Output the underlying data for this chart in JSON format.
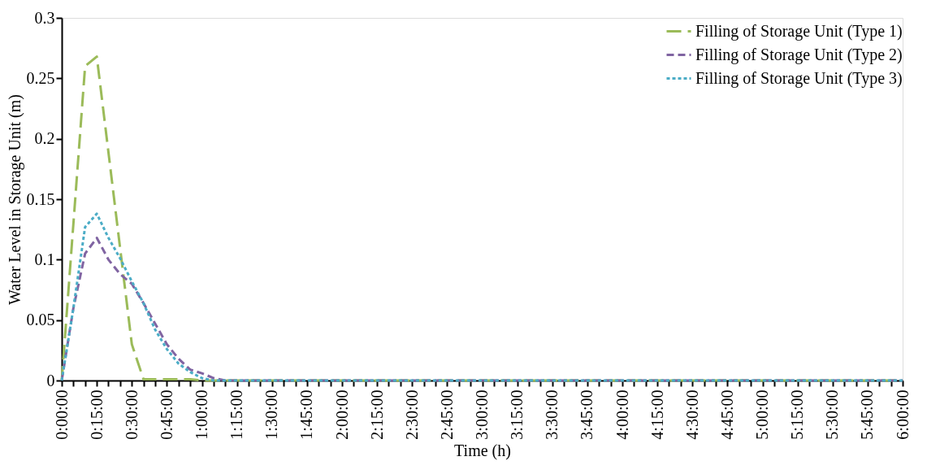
{
  "chart_data": {
    "type": "line",
    "xlabel": "Time (h)",
    "ylabel": "Water Level in Storage Unit (m)",
    "xlim": [
      0,
      6
    ],
    "ylim": [
      0,
      0.3
    ],
    "yticks": [
      0,
      0.05,
      0.1,
      0.15,
      0.2,
      0.25,
      0.3
    ],
    "xticks": [
      {
        "value": 0,
        "label": "0:00:00"
      },
      {
        "value": 0.0833,
        "label": null
      },
      {
        "value": 0.1667,
        "label": null
      },
      {
        "value": 0.25,
        "label": "0:15:00"
      },
      {
        "value": 0.3333,
        "label": null
      },
      {
        "value": 0.4167,
        "label": null
      },
      {
        "value": 0.5,
        "label": "0:30:00"
      },
      {
        "value": 0.5833,
        "label": null
      },
      {
        "value": 0.6667,
        "label": null
      },
      {
        "value": 0.75,
        "label": "0:45:00"
      },
      {
        "value": 0.8333,
        "label": null
      },
      {
        "value": 0.9167,
        "label": null
      },
      {
        "value": 1,
        "label": "1:00:00"
      },
      {
        "value": 1.0833,
        "label": null
      },
      {
        "value": 1.1667,
        "label": null
      },
      {
        "value": 1.25,
        "label": "1:15:00"
      },
      {
        "value": 1.3333,
        "label": null
      },
      {
        "value": 1.4167,
        "label": null
      },
      {
        "value": 1.5,
        "label": "1:30:00"
      },
      {
        "value": 1.5833,
        "label": null
      },
      {
        "value": 1.6667,
        "label": null
      },
      {
        "value": 1.75,
        "label": "1:45:00"
      },
      {
        "value": 1.8333,
        "label": null
      },
      {
        "value": 1.9167,
        "label": null
      },
      {
        "value": 2,
        "label": "2:00:00"
      },
      {
        "value": 2.0833,
        "label": null
      },
      {
        "value": 2.1667,
        "label": null
      },
      {
        "value": 2.25,
        "label": "2:15:00"
      },
      {
        "value": 2.3333,
        "label": null
      },
      {
        "value": 2.4167,
        "label": null
      },
      {
        "value": 2.5,
        "label": "2:30:00"
      },
      {
        "value": 2.5833,
        "label": null
      },
      {
        "value": 2.6667,
        "label": null
      },
      {
        "value": 2.75,
        "label": "2:45:00"
      },
      {
        "value": 2.8333,
        "label": null
      },
      {
        "value": 2.9167,
        "label": null
      },
      {
        "value": 3,
        "label": "3:00:00"
      },
      {
        "value": 3.0833,
        "label": null
      },
      {
        "value": 3.1667,
        "label": null
      },
      {
        "value": 3.25,
        "label": "3:15:00"
      },
      {
        "value": 3.3333,
        "label": null
      },
      {
        "value": 3.4167,
        "label": null
      },
      {
        "value": 3.5,
        "label": "3:30:00"
      },
      {
        "value": 3.5833,
        "label": null
      },
      {
        "value": 3.6667,
        "label": null
      },
      {
        "value": 3.75,
        "label": "3:45:00"
      },
      {
        "value": 3.8333,
        "label": null
      },
      {
        "value": 3.9167,
        "label": null
      },
      {
        "value": 4,
        "label": "4:00:00"
      },
      {
        "value": 4.0833,
        "label": null
      },
      {
        "value": 4.1667,
        "label": null
      },
      {
        "value": 4.25,
        "label": "4:15:00"
      },
      {
        "value": 4.3333,
        "label": null
      },
      {
        "value": 4.4167,
        "label": null
      },
      {
        "value": 4.5,
        "label": "4:30:00"
      },
      {
        "value": 4.5833,
        "label": null
      },
      {
        "value": 4.6667,
        "label": null
      },
      {
        "value": 4.75,
        "label": "4:45:00"
      },
      {
        "value": 4.8333,
        "label": null
      },
      {
        "value": 4.9167,
        "label": null
      },
      {
        "value": 5,
        "label": "5:00:00"
      },
      {
        "value": 5.0833,
        "label": null
      },
      {
        "value": 5.1667,
        "label": null
      },
      {
        "value": 5.25,
        "label": "5:15:00"
      },
      {
        "value": 5.3333,
        "label": null
      },
      {
        "value": 5.4167,
        "label": null
      },
      {
        "value": 5.5,
        "label": "5:30:00"
      },
      {
        "value": 5.5833,
        "label": null
      },
      {
        "value": 5.6667,
        "label": null
      },
      {
        "value": 5.75,
        "label": "5:45:00"
      },
      {
        "value": 5.8333,
        "label": null
      },
      {
        "value": 5.9167,
        "label": null
      },
      {
        "value": 6,
        "label": "6:00:00"
      }
    ],
    "grid": false,
    "legend": "top right",
    "marker": "none",
    "series": [
      {
        "name": "Filling of Storage Unit (Type 1)",
        "color": "#9bbb59",
        "line_style": "dashed",
        "x": [
          0,
          0.1667,
          0.25,
          0.5,
          0.5833,
          0.9167,
          1,
          6
        ],
        "values": [
          0,
          0.26,
          0.268,
          0.03,
          0.001,
          0.001,
          0,
          0
        ]
      },
      {
        "name": "Filling of Storage Unit (Type 2)",
        "color": "#8064a2",
        "line_style": "dashed",
        "x": [
          0,
          0.0833,
          0.1667,
          0.25,
          0.3333,
          0.4167,
          0.5,
          0.5833,
          0.6667,
          0.75,
          0.8333,
          0.9167,
          1,
          1.0833,
          1.1667,
          6
        ],
        "values": [
          0,
          0.06,
          0.105,
          0.118,
          0.1,
          0.088,
          0.08,
          0.064,
          0.047,
          0.03,
          0.018,
          0.009,
          0.006,
          0.002,
          0,
          0
        ]
      },
      {
        "name": "Filling of Storage Unit (Type 3)",
        "color": "#4bacc6",
        "line_style": "dotted",
        "x": [
          0,
          0.0833,
          0.1667,
          0.25,
          0.3333,
          0.4167,
          0.5,
          0.5833,
          0.6667,
          0.75,
          0.8333,
          0.9167,
          1,
          1.0833,
          6
        ],
        "values": [
          0,
          0.06,
          0.127,
          0.138,
          0.118,
          0.101,
          0.082,
          0.064,
          0.042,
          0.026,
          0.014,
          0.007,
          0.002,
          0,
          0
        ]
      }
    ]
  }
}
